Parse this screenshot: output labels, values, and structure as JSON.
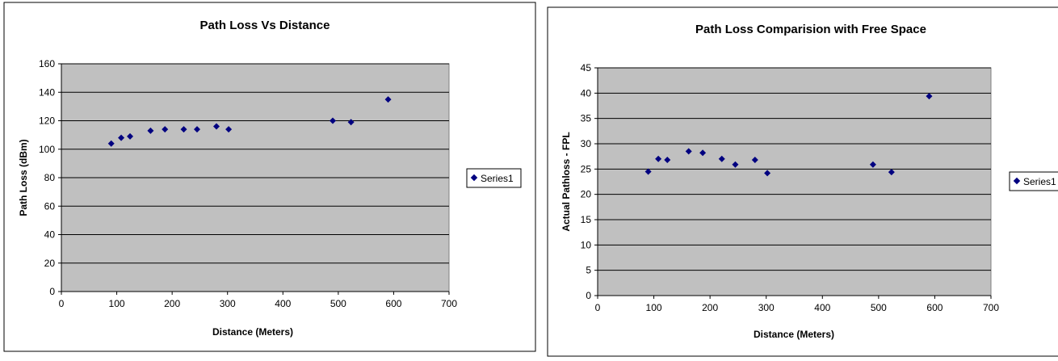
{
  "chart_data": [
    {
      "type": "scatter",
      "title": "Path Loss Vs Distance",
      "xlabel": "Distance (Meters)",
      "ylabel": "Path Loss (dBm)",
      "xlim": [
        0,
        700
      ],
      "ylim": [
        0,
        160
      ],
      "xticks": [
        0,
        100,
        200,
        300,
        400,
        500,
        600,
        700
      ],
      "yticks": [
        0,
        20,
        40,
        60,
        80,
        100,
        120,
        140,
        160
      ],
      "grid": "horizontal",
      "legend_position": "right",
      "plot_background": "#c0c0c0",
      "marker_color": "#000080",
      "series": [
        {
          "name": "Series1",
          "x": [
            90,
            108,
            124,
            161,
            187,
            221,
            245,
            280,
            302,
            490,
            523,
            590
          ],
          "y": [
            104,
            108,
            109,
            113,
            114,
            114,
            114,
            116,
            114,
            120,
            119,
            135
          ]
        }
      ]
    },
    {
      "type": "scatter",
      "title": "Path Loss Comparision with Free Space",
      "xlabel": "Distance (Meters)",
      "ylabel": "Actual Pathloss - FPL",
      "xlim": [
        0,
        700
      ],
      "ylim": [
        0,
        45
      ],
      "xticks": [
        0,
        100,
        200,
        300,
        400,
        500,
        600,
        700
      ],
      "yticks": [
        0,
        5,
        10,
        15,
        20,
        25,
        30,
        35,
        40,
        45
      ],
      "grid": "horizontal",
      "legend_position": "right",
      "plot_background": "#c0c0c0",
      "marker_color": "#000080",
      "series": [
        {
          "name": "Series1",
          "x": [
            90,
            108,
            124,
            162,
            187,
            221,
            245,
            280,
            302,
            490,
            523,
            590
          ],
          "y": [
            24.5,
            27,
            26.8,
            28.5,
            28.2,
            27,
            25.9,
            26.8,
            24.2,
            25.9,
            24.4,
            39.4
          ]
        }
      ]
    }
  ]
}
